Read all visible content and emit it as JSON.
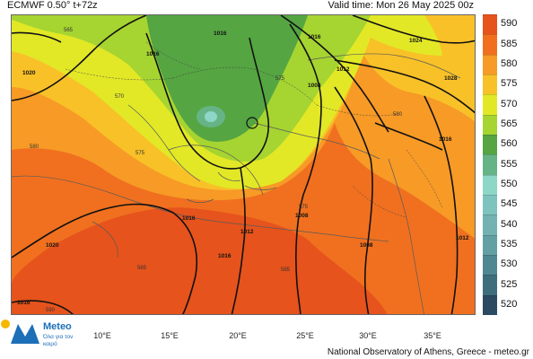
{
  "header": {
    "model_label": "ECMWF 0.50° t+72z",
    "valid_time": "Valid time: Mon 26 May 2025 00z"
  },
  "colorbar": {
    "levels": [
      {
        "value": "590",
        "color": "#e6531c"
      },
      {
        "value": "585",
        "color": "#f0701f"
      },
      {
        "value": "580",
        "color": "#f79a26"
      },
      {
        "value": "575",
        "color": "#f8c128"
      },
      {
        "value": "570",
        "color": "#e2e826"
      },
      {
        "value": "565",
        "color": "#a6d431"
      },
      {
        "value": "560",
        "color": "#55a542"
      },
      {
        "value": "555",
        "color": "#66b486"
      },
      {
        "value": "550",
        "color": "#8ed6c6"
      },
      {
        "value": "545",
        "color": "#7fc3be"
      },
      {
        "value": "540",
        "color": "#72b3b1"
      },
      {
        "value": "535",
        "color": "#62a0a3"
      },
      {
        "value": "530",
        "color": "#4f8891"
      },
      {
        "value": "525",
        "color": "#3e6e7c"
      },
      {
        "value": "520",
        "color": "#2d4a63"
      }
    ]
  },
  "map": {
    "longitudes": [
      "10°E",
      "15°E",
      "20°E",
      "25°E",
      "30°E",
      "35°E"
    ],
    "height_labels": [
      "565",
      "570",
      "575",
      "575",
      "580",
      "580",
      "585",
      "585",
      "590",
      "575"
    ],
    "pressure_labels": [
      "1016",
      "1016",
      "1016",
      "1016",
      "1016",
      "1008",
      "1008",
      "1008",
      "1012",
      "1012",
      "1012",
      "1020",
      "1020",
      "1024",
      "1028",
      "1016",
      "1016"
    ]
  },
  "logo": {
    "name": "Meteo",
    "tagline": "Όλα για τον καιρό"
  },
  "footer": {
    "credit": "National Observatory of Athens, Greece - meteo.gr"
  }
}
